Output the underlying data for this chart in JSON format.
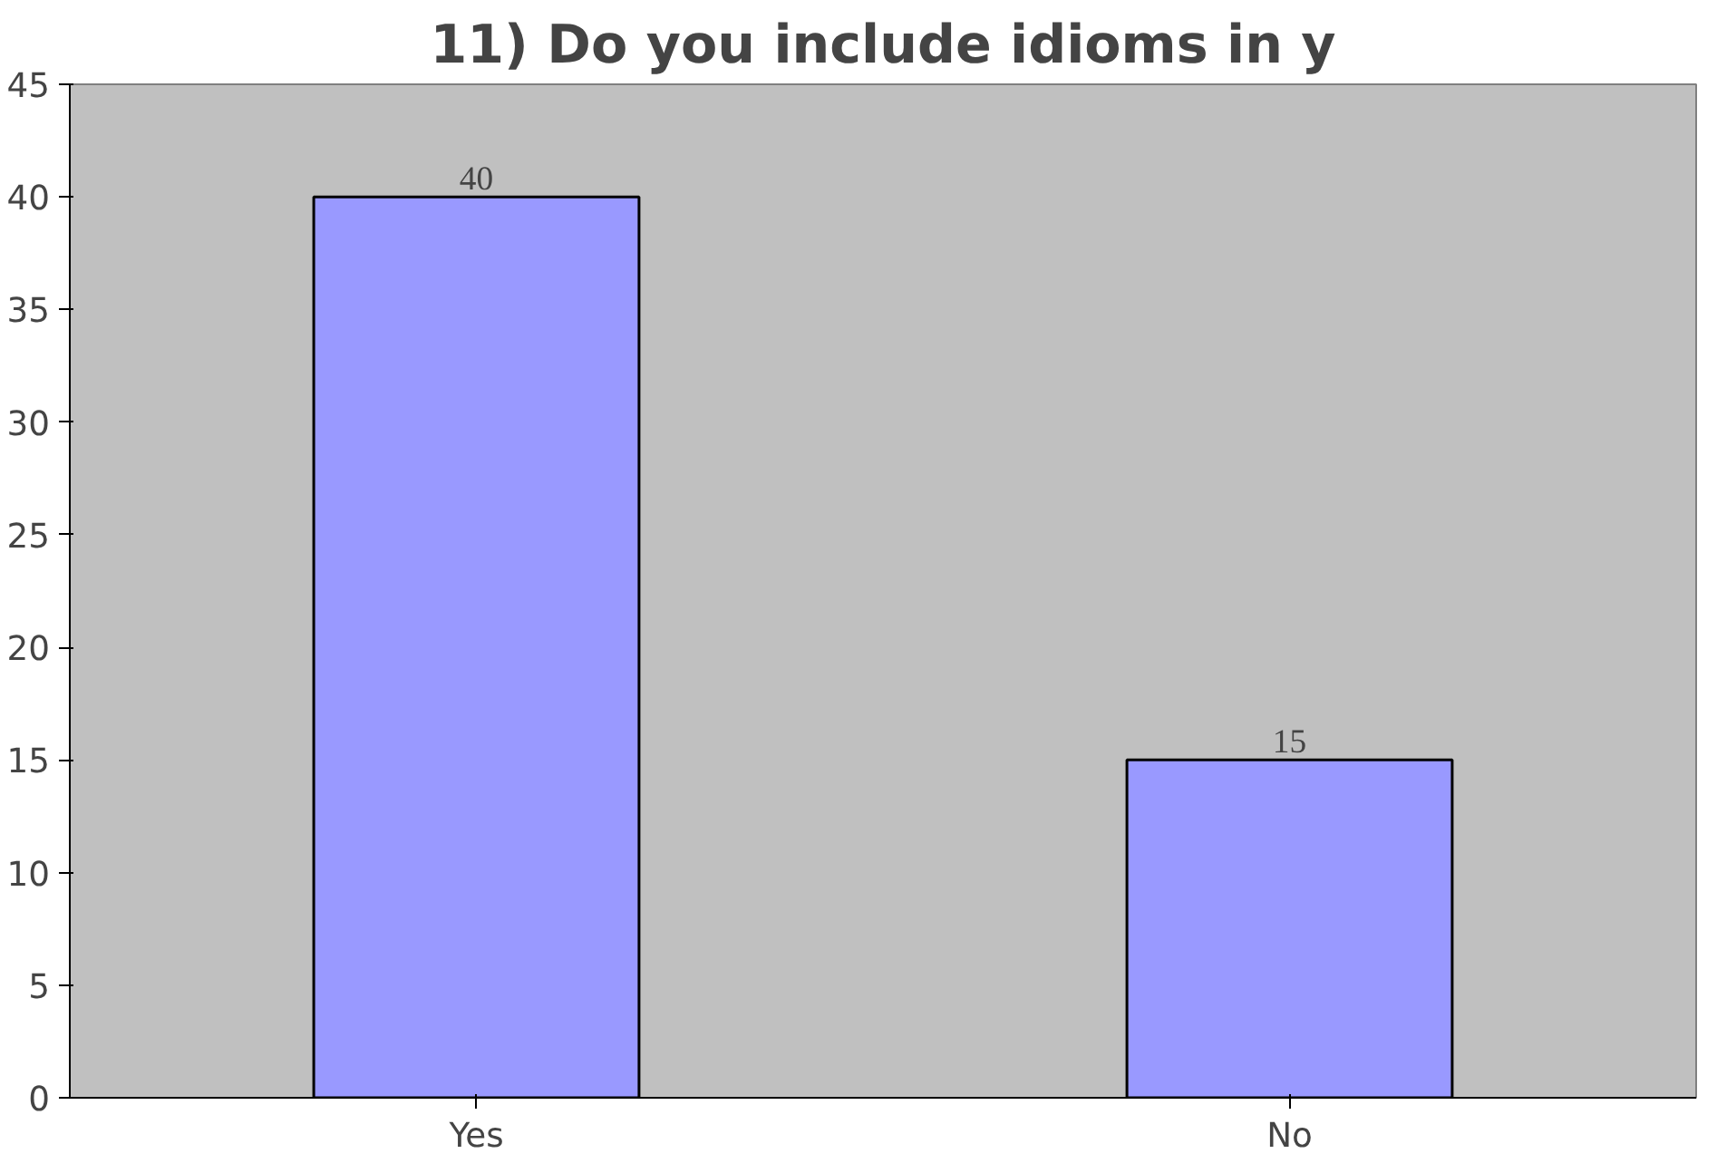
{
  "chart_data": {
    "type": "bar",
    "title": "11) Do you include idioms in y",
    "categories": [
      "Yes",
      "No"
    ],
    "values": [
      40,
      15
    ],
    "color": "#9999ff",
    "ylim": [
      0,
      45
    ],
    "yticks": [
      0,
      5,
      10,
      15,
      20,
      25,
      30,
      35,
      40,
      45
    ],
    "grid": false,
    "data_labels": true
  }
}
